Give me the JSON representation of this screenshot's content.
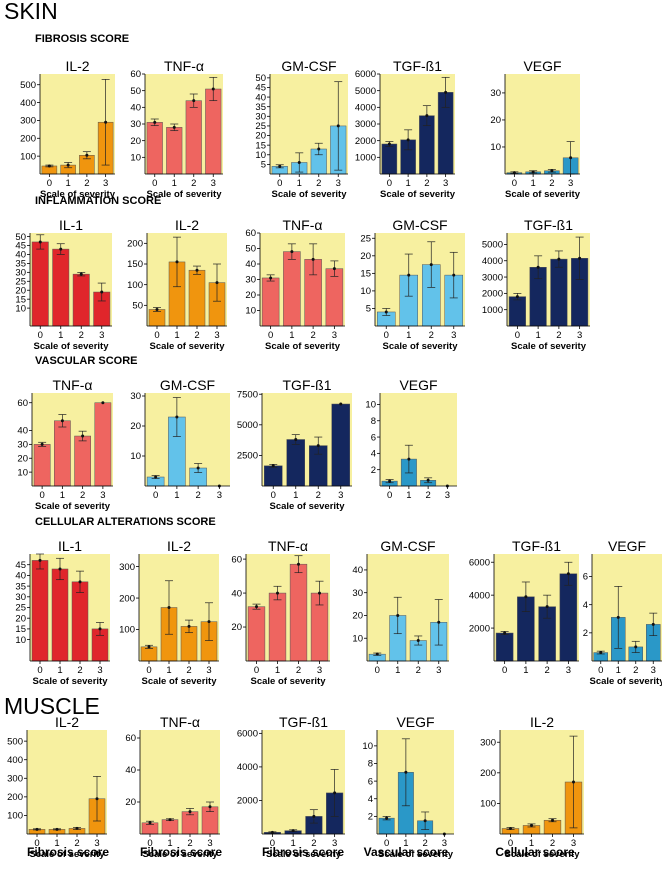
{
  "skin_title": "SKIN",
  "muscle_title": "MUSCLE",
  "sections": {
    "fibrosis": "FIBROSIS SCORE",
    "inflammation": "INFLAMMATION SCORE",
    "vascular": "VASCULAR SCORE",
    "cellular": "CELLULAR ALTERATIONS SCORE"
  },
  "bottom_labels": [
    "Fibrosis score",
    "Fibrosis score",
    "Fibrosis score",
    "Vascular score",
    "Cellular score"
  ],
  "colors": {
    "panel_bg": "#f7f0a0",
    "red": "#e0262b",
    "orange": "#f0950e",
    "salmon": "#ee6560",
    "lightblue": "#62c2ea",
    "navy": "#14275e",
    "teal": "#2a98c8"
  },
  "chart_data": [
    {
      "id": "f-il2",
      "section": "fibrosis",
      "type": "bar",
      "title": "IL-2",
      "xlabel": "Scale of severity",
      "categories": [
        "0",
        "1",
        "2",
        "3"
      ],
      "values": [
        45,
        50,
        105,
        290
      ],
      "errors": [
        5,
        15,
        20,
        240
      ],
      "ylim": [
        0,
        560
      ],
      "yticks": [
        100,
        200,
        300,
        400,
        500
      ],
      "color": "orange"
    },
    {
      "id": "f-tnf",
      "section": "fibrosis",
      "type": "bar",
      "title": "TNF-α",
      "xlabel": "Scale of severity",
      "categories": [
        "0",
        "1",
        "2",
        "3"
      ],
      "values": [
        31,
        28,
        44,
        51
      ],
      "errors": [
        2,
        2,
        4,
        7
      ],
      "ylim": [
        0,
        60
      ],
      "yticks": [
        10,
        20,
        30,
        40,
        50,
        60
      ],
      "color": "salmon"
    },
    {
      "id": "f-gmcsf",
      "section": "fibrosis",
      "type": "bar",
      "title": "GM-CSF",
      "xlabel": "Scale of severity",
      "categories": [
        "0",
        "1",
        "2",
        "3"
      ],
      "values": [
        4,
        6,
        13,
        25
      ],
      "errors": [
        0.8,
        5,
        3,
        23
      ],
      "ylim": [
        0,
        52
      ],
      "yticks": [
        5,
        10,
        15,
        20,
        25,
        30,
        35,
        40,
        45,
        50
      ],
      "color": "lightblue"
    },
    {
      "id": "f-tgf",
      "section": "fibrosis",
      "type": "bar",
      "title": "TGF-ß1",
      "xlabel": "Scale of severity",
      "categories": [
        "0",
        "1",
        "2",
        "3"
      ],
      "values": [
        1800,
        2050,
        3500,
        4900
      ],
      "errors": [
        150,
        600,
        600,
        900
      ],
      "ylim": [
        0,
        6000
      ],
      "yticks": [
        1000,
        2000,
        3000,
        4000,
        5000,
        6000
      ],
      "color": "navy"
    },
    {
      "id": "f-vegf",
      "section": "fibrosis",
      "type": "bar",
      "title": "VEGF",
      "xlabel": "Scale of severity",
      "categories": [
        "0",
        "1",
        "2",
        "3"
      ],
      "values": [
        0.5,
        0.8,
        1.2,
        6
      ],
      "errors": [
        0.3,
        0.4,
        0.5,
        6
      ],
      "ylim": [
        0,
        37
      ],
      "yticks": [
        10,
        20,
        30
      ],
      "color": "teal"
    },
    {
      "id": "i-il1",
      "section": "inflammation",
      "type": "bar",
      "title": "IL-1",
      "xlabel": "Scale of severity",
      "categories": [
        "0",
        "1",
        "2",
        "3"
      ],
      "values": [
        47,
        43,
        29,
        19
      ],
      "errors": [
        4,
        3,
        1,
        5
      ],
      "ylim": [
        0,
        52
      ],
      "yticks": [
        10,
        15,
        20,
        25,
        30,
        35,
        40,
        45,
        50
      ],
      "color": "red"
    },
    {
      "id": "i-il2",
      "section": "inflammation",
      "type": "bar",
      "title": "IL-2",
      "xlabel": "Scale of severity",
      "categories": [
        "0",
        "1",
        "2",
        "3"
      ],
      "values": [
        40,
        155,
        135,
        105
      ],
      "errors": [
        5,
        60,
        10,
        45
      ],
      "ylim": [
        0,
        225
      ],
      "yticks": [
        50,
        100,
        150,
        200
      ],
      "color": "orange"
    },
    {
      "id": "i-tnf",
      "section": "inflammation",
      "type": "bar",
      "title": "TNF-α",
      "xlabel": "Scale of severity",
      "categories": [
        "0",
        "1",
        "2",
        "3"
      ],
      "values": [
        31,
        48,
        43,
        37
      ],
      "errors": [
        2,
        5,
        10,
        5
      ],
      "ylim": [
        0,
        60
      ],
      "yticks": [
        10,
        20,
        30,
        40,
        50,
        60
      ],
      "color": "salmon"
    },
    {
      "id": "i-gmcsf",
      "section": "inflammation",
      "type": "bar",
      "title": "GM-CSF",
      "xlabel": "Scale of severity",
      "categories": [
        "0",
        "1",
        "2",
        "3"
      ],
      "values": [
        4,
        14.5,
        17.5,
        14.5
      ],
      "errors": [
        1,
        6,
        6.5,
        6.5
      ],
      "ylim": [
        0,
        26.5
      ],
      "yticks": [
        5,
        10,
        15,
        20,
        25
      ],
      "color": "lightblue"
    },
    {
      "id": "i-tgf",
      "section": "inflammation",
      "type": "bar",
      "title": "TGF-ß1",
      "xlabel": "Scale of severity",
      "categories": [
        "0",
        "1",
        "2",
        "3"
      ],
      "values": [
        1800,
        3600,
        4100,
        4150
      ],
      "errors": [
        200,
        700,
        500,
        1300
      ],
      "ylim": [
        0,
        5700
      ],
      "yticks": [
        1000,
        2000,
        3000,
        4000,
        5000
      ],
      "color": "navy"
    },
    {
      "id": "v-tnf",
      "section": "vascular",
      "type": "bar",
      "title": "TNF-α",
      "xlabel": "Scale of severity",
      "categories": [
        "0",
        "1",
        "2",
        "3"
      ],
      "values": [
        30,
        47,
        36,
        60
      ],
      "errors": [
        1.5,
        4.5,
        3.5,
        0
      ],
      "ylim": [
        0,
        67
      ],
      "yticks": [
        10,
        20,
        30,
        40,
        60
      ],
      "color": "salmon"
    },
    {
      "id": "v-gmcsf",
      "section": "vascular",
      "type": "bar",
      "title": "GM-CSF",
      "xlabel": "",
      "categories": [
        "0",
        "1",
        "2",
        "3"
      ],
      "values": [
        3,
        23,
        6,
        0
      ],
      "errors": [
        0.5,
        6.5,
        1.5,
        0
      ],
      "ylim": [
        0,
        31
      ],
      "yticks": [
        10,
        20,
        30
      ],
      "color": "lightblue"
    },
    {
      "id": "v-tgf",
      "section": "vascular",
      "type": "bar",
      "title": "TGF-ß1",
      "xlabel": "Scale of severity",
      "categories": [
        "0",
        "1",
        "2",
        "3"
      ],
      "values": [
        1650,
        3800,
        3300,
        6700
      ],
      "errors": [
        120,
        400,
        700,
        0
      ],
      "ylim": [
        0,
        7600
      ],
      "yticks": [
        2500,
        5000,
        7500
      ],
      "color": "navy"
    },
    {
      "id": "v-vegf",
      "section": "vascular",
      "type": "bar",
      "title": "VEGF",
      "xlabel": "",
      "categories": [
        "0",
        "1",
        "2",
        "3"
      ],
      "values": [
        0.6,
        3.3,
        0.7,
        0
      ],
      "errors": [
        0.2,
        1.7,
        0.3,
        0
      ],
      "ylim": [
        0,
        11.4
      ],
      "yticks": [
        2,
        4,
        6,
        8,
        10
      ],
      "color": "teal"
    },
    {
      "id": "c-il1",
      "section": "cellular",
      "type": "bar",
      "title": "IL-1",
      "xlabel": "Scale of severity",
      "categories": [
        "0",
        "1",
        "2",
        "3"
      ],
      "values": [
        47,
        43,
        37,
        15
      ],
      "errors": [
        4,
        5,
        5,
        3
      ],
      "ylim": [
        0,
        50
      ],
      "yticks": [
        10,
        15,
        20,
        25,
        30,
        35,
        40,
        45
      ],
      "color": "red"
    },
    {
      "id": "c-il2",
      "section": "cellular",
      "type": "bar",
      "title": "IL-2",
      "xlabel": "Scale of severity",
      "categories": [
        "0",
        "1",
        "2",
        "3"
      ],
      "values": [
        45,
        170,
        110,
        125
      ],
      "errors": [
        5,
        85,
        20,
        60
      ],
      "ylim": [
        0,
        340
      ],
      "yticks": [
        100,
        200,
        300
      ],
      "color": "orange"
    },
    {
      "id": "c-tnf",
      "section": "cellular",
      "type": "bar",
      "title": "TNF-α",
      "xlabel": "Scale of severity",
      "categories": [
        "0",
        "1",
        "2",
        "3"
      ],
      "values": [
        32,
        40,
        57,
        40
      ],
      "errors": [
        1.5,
        4,
        5,
        7
      ],
      "ylim": [
        0,
        63
      ],
      "yticks": [
        20,
        40,
        60
      ],
      "color": "salmon"
    },
    {
      "id": "c-gmcsf",
      "section": "cellular",
      "type": "bar",
      "title": "GM-CSF",
      "xlabel": "",
      "categories": [
        "0",
        "1",
        "2",
        "3"
      ],
      "values": [
        3,
        20,
        9,
        17
      ],
      "errors": [
        0.5,
        8,
        2,
        10
      ],
      "ylim": [
        0,
        47
      ],
      "yticks": [
        10,
        20,
        30,
        40
      ],
      "color": "lightblue"
    },
    {
      "id": "c-tgf",
      "section": "cellular",
      "type": "bar",
      "title": "TGF-ß1",
      "xlabel": "",
      "categories": [
        "0",
        "1",
        "2",
        "3"
      ],
      "values": [
        1700,
        3900,
        3300,
        5300
      ],
      "errors": [
        100,
        900,
        700,
        700
      ],
      "ylim": [
        0,
        6500
      ],
      "yticks": [
        2000,
        4000,
        6000
      ],
      "color": "navy"
    },
    {
      "id": "c-vegf",
      "section": "cellular",
      "type": "bar",
      "title": "VEGF",
      "xlabel": "Scale of severity",
      "categories": [
        "0",
        "1",
        "2",
        "3"
      ],
      "values": [
        0.6,
        3.1,
        1,
        2.6
      ],
      "errors": [
        0.1,
        2.2,
        0.4,
        0.8
      ],
      "ylim": [
        0,
        7.6
      ],
      "yticks": [
        2,
        4,
        6
      ],
      "color": "teal"
    },
    {
      "id": "m-il2",
      "section": "muscle",
      "type": "bar",
      "title": "IL-2",
      "xlabel": "Scale of severity",
      "categories": [
        "0",
        "1",
        "2",
        "3"
      ],
      "values": [
        25,
        25,
        30,
        190
      ],
      "errors": [
        3,
        3,
        5,
        120
      ],
      "ylim": [
        0,
        560
      ],
      "yticks": [
        100,
        200,
        300,
        400,
        500
      ],
      "color": "orange"
    },
    {
      "id": "m-tnf",
      "section": "muscle",
      "type": "bar",
      "title": "TNF-α",
      "xlabel": "Scale of severity",
      "categories": [
        "0",
        "1",
        "2",
        "3"
      ],
      "values": [
        7,
        9,
        14,
        17
      ],
      "errors": [
        1,
        0.5,
        2,
        3
      ],
      "ylim": [
        0,
        65
      ],
      "yticks": [
        20,
        40,
        60
      ],
      "color": "salmon"
    },
    {
      "id": "m-tgf",
      "section": "muscle",
      "type": "bar",
      "title": "TGF-ß1",
      "xlabel": "Scale of severity",
      "categories": [
        "0",
        "1",
        "2",
        "3"
      ],
      "values": [
        100,
        200,
        1050,
        2450
      ],
      "errors": [
        30,
        50,
        400,
        1400
      ],
      "ylim": [
        0,
        6200
      ],
      "yticks": [
        2000,
        4000,
        6000
      ],
      "color": "navy"
    },
    {
      "id": "m-vegf",
      "section": "muscle",
      "type": "bar",
      "title": "VEGF",
      "xlabel": "Scale of severity",
      "categories": [
        "0",
        "1",
        "2",
        "3"
      ],
      "values": [
        1.8,
        7,
        1.5,
        0
      ],
      "errors": [
        0.2,
        3.8,
        1,
        0
      ],
      "ylim": [
        0,
        11.8
      ],
      "yticks": [
        2,
        4,
        6,
        8,
        10
      ],
      "color": "teal"
    },
    {
      "id": "m-il2b",
      "section": "muscle",
      "type": "bar",
      "title": "IL-2",
      "xlabel": "Scale of severity",
      "categories": [
        "0",
        "1",
        "2",
        "3"
      ],
      "values": [
        18,
        28,
        45,
        170
      ],
      "errors": [
        3,
        5,
        5,
        150
      ],
      "ylim": [
        0,
        340
      ],
      "yticks": [
        100,
        200,
        300
      ],
      "color": "orange"
    }
  ]
}
